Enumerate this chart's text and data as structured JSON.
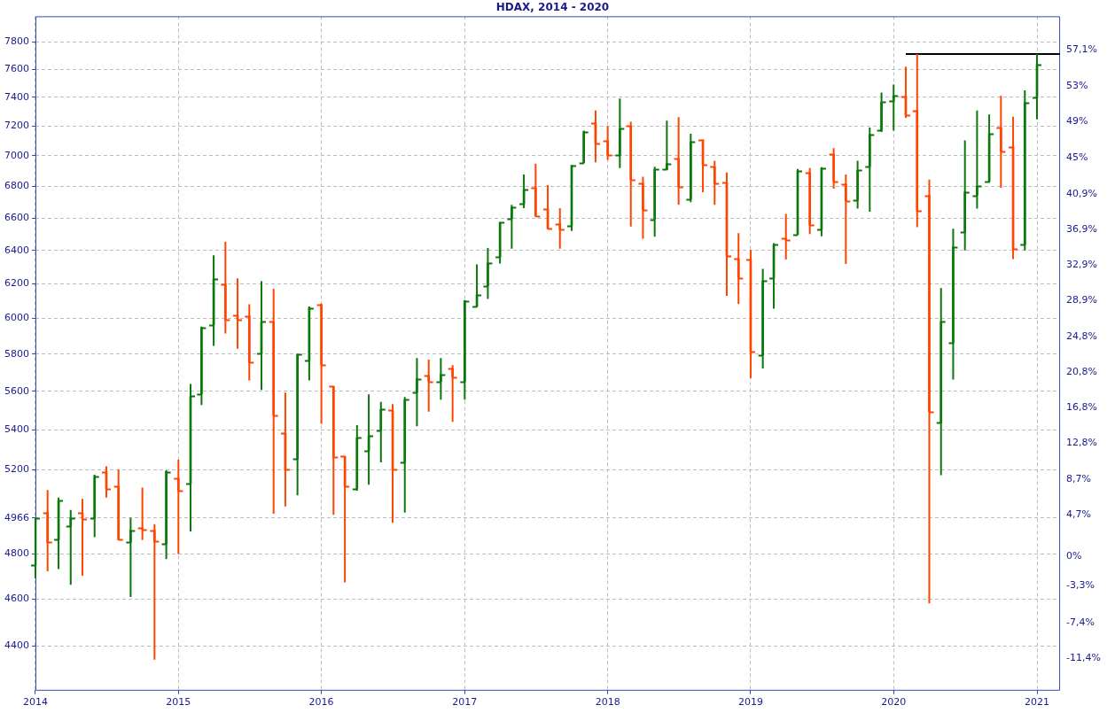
{
  "chart_data": {
    "type": "candlestick",
    "title": "HDAX, 2014 - 2020",
    "x": [
      "2014-01",
      "2014-02",
      "2014-03",
      "2014-04",
      "2014-05",
      "2014-06",
      "2014-07",
      "2014-08",
      "2014-09",
      "2014-10",
      "2014-11",
      "2014-12",
      "2015-01",
      "2015-02",
      "2015-03",
      "2015-04",
      "2015-05",
      "2015-06",
      "2015-07",
      "2015-08",
      "2015-09",
      "2015-10",
      "2015-11",
      "2015-12",
      "2016-01",
      "2016-02",
      "2016-03",
      "2016-04",
      "2016-05",
      "2016-06",
      "2016-07",
      "2016-08",
      "2016-09",
      "2016-10",
      "2016-11",
      "2016-12",
      "2017-01",
      "2017-02",
      "2017-03",
      "2017-04",
      "2017-05",
      "2017-06",
      "2017-07",
      "2017-08",
      "2017-09",
      "2017-10",
      "2017-11",
      "2017-12",
      "2018-01",
      "2018-02",
      "2018-03",
      "2018-04",
      "2018-05",
      "2018-06",
      "2018-07",
      "2018-08",
      "2018-09",
      "2018-10",
      "2018-11",
      "2018-12",
      "2019-01",
      "2019-02",
      "2019-03",
      "2019-04",
      "2019-05",
      "2019-06",
      "2019-07",
      "2019-08",
      "2019-09",
      "2019-10",
      "2019-11",
      "2019-12",
      "2020-01",
      "2020-02",
      "2020-03",
      "2020-04",
      "2020-05",
      "2020-06",
      "2020-07",
      "2020-08",
      "2020-09",
      "2020-10",
      "2020-11",
      "2020-12",
      "2021-01"
    ],
    "ohlc": [
      [
        4750,
        4966,
        4690,
        4966
      ],
      [
        4992,
        5100,
        4722,
        4853
      ],
      [
        4865,
        5063,
        4732,
        5048
      ],
      [
        4928,
        5004,
        4662,
        4966
      ],
      [
        4990,
        5057,
        4702,
        4962
      ],
      [
        4966,
        5174,
        4877,
        5167
      ],
      [
        5189,
        5216,
        5063,
        5107
      ],
      [
        5118,
        5200,
        4863,
        4865
      ],
      [
        4853,
        4968,
        4608,
        4909
      ],
      [
        4920,
        5112,
        4863,
        4913
      ],
      [
        4909,
        4938,
        4342,
        4857
      ],
      [
        4845,
        5196,
        4776,
        5189
      ],
      [
        5156,
        5248,
        4800,
        5096
      ],
      [
        5129,
        5639,
        4903,
        5574
      ],
      [
        5586,
        5954,
        5528,
        5949
      ],
      [
        5964,
        6370,
        5846,
        6230
      ],
      [
        6200,
        6453,
        5916,
        5992
      ],
      [
        6020,
        6233,
        5830,
        5992
      ],
      [
        6015,
        6082,
        5658,
        5754
      ],
      [
        5803,
        6216,
        5607,
        5982
      ],
      [
        5982,
        6172,
        4986,
        5474
      ],
      [
        5384,
        5593,
        5021,
        5200
      ],
      [
        5251,
        5803,
        5074,
        5798
      ],
      [
        5764,
        6069,
        5658,
        6061
      ],
      [
        6080,
        6085,
        5430,
        5742
      ],
      [
        5626,
        5630,
        4981,
        5260
      ],
      [
        5264,
        5268,
        4672,
        5118
      ],
      [
        5107,
        5423,
        5096,
        5359
      ],
      [
        5293,
        5584,
        5125,
        5370
      ],
      [
        5395,
        5544,
        5235,
        5504
      ],
      [
        5500,
        5532,
        4944,
        5200
      ],
      [
        5235,
        5570,
        4992,
        5556
      ],
      [
        5593,
        5779,
        5418,
        5667
      ],
      [
        5684,
        5771,
        5493,
        5653
      ],
      [
        5653,
        5779,
        5556,
        5691
      ],
      [
        5723,
        5740,
        5440,
        5677
      ],
      [
        5651,
        6106,
        5556,
        6101
      ],
      [
        6069,
        6316,
        6065,
        6136
      ],
      [
        6189,
        6414,
        6112,
        6324
      ],
      [
        6361,
        6575,
        6321,
        6572
      ],
      [
        6597,
        6682,
        6411,
        6668
      ],
      [
        6687,
        6878,
        6662,
        6780
      ],
      [
        6792,
        6949,
        6608,
        6611
      ],
      [
        6656,
        6809,
        6530,
        6533
      ],
      [
        6564,
        6662,
        6411,
        6528
      ],
      [
        6550,
        6940,
        6519,
        6937
      ],
      [
        6955,
        7170,
        6950,
        7161
      ],
      [
        7221,
        7308,
        6958,
        7085
      ],
      [
        7100,
        7200,
        6973,
        7003
      ],
      [
        7003,
        7391,
        6919,
        7182
      ],
      [
        7200,
        7230,
        6547,
        6845
      ],
      [
        6821,
        6863,
        6472,
        6651
      ],
      [
        6592,
        6928,
        6483,
        6910
      ],
      [
        6910,
        7237,
        6905,
        6949
      ],
      [
        6982,
        7262,
        6682,
        6797
      ],
      [
        6718,
        7148,
        6699,
        7094
      ],
      [
        7106,
        7110,
        6763,
        6943
      ],
      [
        6928,
        6967,
        6682,
        6818
      ],
      [
        6824,
        6890,
        6130,
        6367
      ],
      [
        6351,
        6506,
        6083,
        6234
      ],
      [
        6345,
        6403,
        5670,
        5815
      ],
      [
        5795,
        6289,
        5723,
        6219
      ],
      [
        6235,
        6444,
        6056,
        6435
      ],
      [
        6472,
        6625,
        6345,
        6464
      ],
      [
        6497,
        6913,
        6495,
        6901
      ],
      [
        6890,
        6919,
        6500,
        6556
      ],
      [
        6528,
        6925,
        6486,
        6919
      ],
      [
        7009,
        7052,
        6786,
        6833
      ],
      [
        6815,
        6878,
        6318,
        6707
      ],
      [
        6713,
        6967,
        6659,
        6904
      ],
      [
        6928,
        7191,
        6639,
        7145
      ],
      [
        7170,
        7433,
        7161,
        7366
      ],
      [
        7372,
        7489,
        7170,
        7410
      ],
      [
        7406,
        7617,
        7255,
        7275
      ],
      [
        7308,
        7710,
        6542,
        6644
      ],
      [
        6743,
        6845,
        4580,
        5493
      ],
      [
        5435,
        6175,
        5172,
        5982
      ],
      [
        5863,
        6533,
        5663,
        6422
      ],
      [
        6514,
        7103,
        6400,
        6764
      ],
      [
        6743,
        7308,
        6659,
        6803
      ],
      [
        6833,
        7280,
        6824,
        7148
      ],
      [
        7188,
        7410,
        6791,
        7030
      ],
      [
        7060,
        7264,
        6348,
        6408
      ],
      [
        6435,
        7449,
        6400,
        7363
      ],
      [
        7397,
        7710,
        7246,
        7633
      ]
    ],
    "colors": [
      "#0b780b",
      "#ff4500",
      "#0b780b",
      "#0b780b",
      "#ff4500",
      "#0b780b",
      "#ff4500",
      "#ff4500",
      "#0b780b",
      "#ff4500",
      "#ff4500",
      "#0b780b",
      "#ff4500",
      "#0b780b",
      "#0b780b",
      "#0b780b",
      "#ff4500",
      "#ff4500",
      "#ff4500",
      "#0b780b",
      "#ff4500",
      "#ff4500",
      "#0b780b",
      "#0b780b",
      "#ff4500",
      "#ff4500",
      "#ff4500",
      "#0b780b",
      "#0b780b",
      "#0b780b",
      "#ff4500",
      "#0b780b",
      "#0b780b",
      "#ff4500",
      "#0b780b",
      "#ff4500",
      "#0b780b",
      "#0b780b",
      "#0b780b",
      "#0b780b",
      "#0b780b",
      "#0b780b",
      "#ff4500",
      "#ff4500",
      "#ff4500",
      "#0b780b",
      "#0b780b",
      "#ff4500",
      "#ff4500",
      "#0b780b",
      "#ff4500",
      "#ff4500",
      "#0b780b",
      "#0b780b",
      "#ff4500",
      "#0b780b",
      "#ff4500",
      "#ff4500",
      "#ff4500",
      "#ff4500",
      "#ff4500",
      "#0b780b",
      "#0b780b",
      "#ff4500",
      "#0b780b",
      "#ff4500",
      "#0b780b",
      "#ff4500",
      "#ff4500",
      "#0b780b",
      "#0b780b",
      "#0b780b",
      "#0b780b",
      "#ff4500",
      "#ff4500",
      "#ff4500",
      "#0b780b",
      "#0b780b",
      "#0b780b",
      "#0b780b",
      "#0b780b",
      "#ff4500",
      "#ff4500",
      "#0b780b",
      "#0b780b"
    ],
    "series": [
      {
        "type": "line",
        "color": "#000000",
        "x": [
          "2020-02",
          "2021-03"
        ],
        "values": [
          7710,
          7710
        ]
      }
    ],
    "xlim": [
      "2014-01",
      "2021-03"
    ],
    "xticks": [
      "2014",
      "2015",
      "2016",
      "2017",
      "2018",
      "2019",
      "2020",
      "2021"
    ],
    "ylim": [
      4220,
      7990
    ],
    "yticks": [
      4400,
      4600,
      4800,
      4966,
      5200,
      5400,
      5600,
      5800,
      6000,
      6200,
      6400,
      6600,
      6800,
      7000,
      7200,
      7400,
      7600,
      7800
    ],
    "y2lim": [
      -15.0,
      60.9
    ],
    "y2ticks": [
      {
        "value": -11.4,
        "label": "-11,4%"
      },
      {
        "value": -7.4,
        "label": "-7,4%"
      },
      {
        "value": -3.3,
        "label": "-3,3%"
      },
      {
        "value": 0,
        "label": "0%"
      },
      {
        "value": 4.7,
        "label": "4,7%"
      },
      {
        "value": 8.7,
        "label": "8,7%"
      },
      {
        "value": 12.8,
        "label": "12,8%"
      },
      {
        "value": 16.8,
        "label": "16,8%"
      },
      {
        "value": 20.8,
        "label": "20,8%"
      },
      {
        "value": 24.8,
        "label": "24,8%"
      },
      {
        "value": 28.9,
        "label": "28,9%"
      },
      {
        "value": 32.9,
        "label": "32,9%"
      },
      {
        "value": 36.9,
        "label": "36,9%"
      },
      {
        "value": 40.9,
        "label": "40,9%"
      },
      {
        "value": 45,
        "label": "45%"
      },
      {
        "value": 49,
        "label": "49%"
      },
      {
        "value": 53,
        "label": "53%"
      },
      {
        "value": 57.1,
        "label": "57,1%"
      }
    ],
    "log": true,
    "grid": true,
    "legend": false,
    "marker": "none"
  }
}
